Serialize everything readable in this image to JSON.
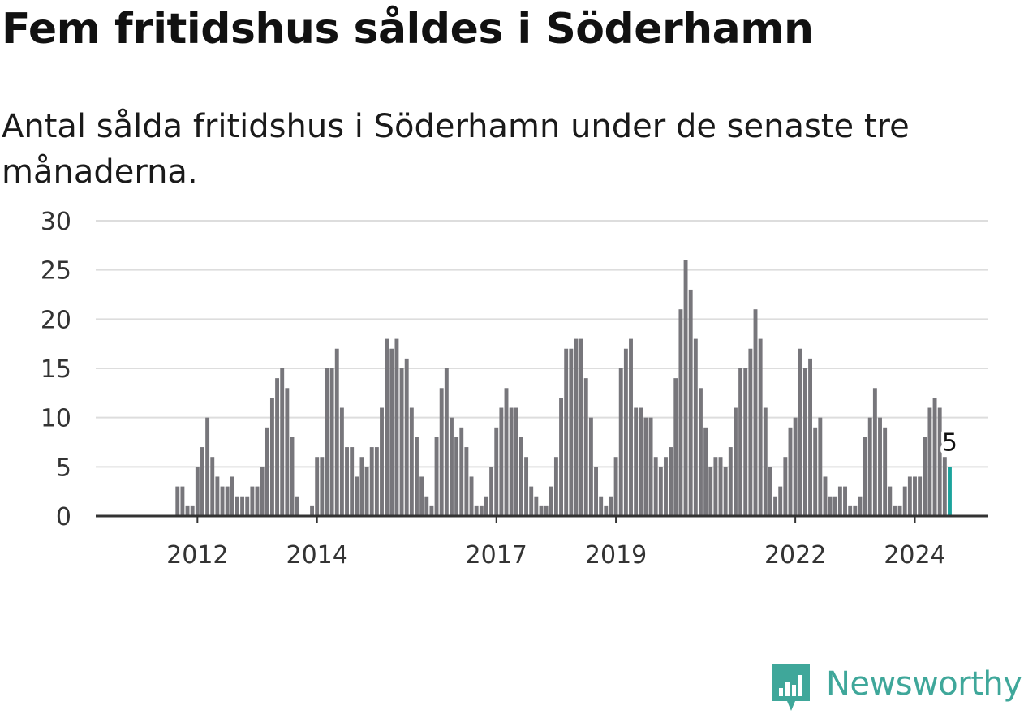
{
  "title": "Fem fritidshus såldes i Söderhamn",
  "subtitle": "Antal sålda fritidshus i Söderhamn under de senaste tre månaderna.",
  "logo": {
    "text": "Newsworthy",
    "icon": "newsworthy-chart-icon",
    "color": "#3fa79a"
  },
  "colors": {
    "bar": "#77767b",
    "highlight": "#1ba39c",
    "grid": "#dddddd",
    "axis": "#333333"
  },
  "chart_data": {
    "type": "bar",
    "ylim": [
      0,
      30
    ],
    "y_ticks": [
      0,
      5,
      10,
      15,
      20,
      25,
      30
    ],
    "x_ticks": [
      {
        "year": 2012,
        "label": "2012"
      },
      {
        "year": 2014,
        "label": "2014"
      },
      {
        "year": 2017,
        "label": "2017"
      },
      {
        "year": 2019,
        "label": "2019"
      },
      {
        "year": 2022,
        "label": "2022"
      },
      {
        "year": 2024,
        "label": "2024"
      }
    ],
    "x_start": "2011-01",
    "values": [
      0,
      0,
      0,
      0,
      0,
      0,
      0,
      0,
      3,
      3,
      1,
      1,
      5,
      7,
      10,
      6,
      4,
      3,
      3,
      4,
      2,
      2,
      2,
      3,
      3,
      5,
      9,
      12,
      14,
      15,
      13,
      8,
      2,
      0,
      0,
      1,
      6,
      6,
      15,
      15,
      17,
      11,
      7,
      7,
      4,
      6,
      5,
      7,
      7,
      11,
      18,
      17,
      18,
      15,
      16,
      11,
      8,
      4,
      2,
      1,
      8,
      13,
      15,
      10,
      8,
      9,
      7,
      4,
      1,
      1,
      2,
      5,
      9,
      11,
      13,
      11,
      11,
      8,
      6,
      3,
      2,
      1,
      1,
      3,
      6,
      12,
      17,
      17,
      18,
      18,
      14,
      10,
      5,
      2,
      1,
      2,
      6,
      15,
      17,
      18,
      11,
      11,
      10,
      10,
      6,
      5,
      6,
      7,
      14,
      21,
      26,
      23,
      18,
      13,
      9,
      5,
      6,
      6,
      5,
      7,
      11,
      15,
      15,
      17,
      21,
      18,
      11,
      5,
      2,
      3,
      6,
      9,
      10,
      17,
      15,
      16,
      9,
      10,
      4,
      2,
      2,
      3,
      3,
      1,
      1,
      2,
      8,
      10,
      13,
      10,
      9,
      3,
      1,
      1,
      3,
      4,
      4,
      4,
      8,
      11,
      12,
      11,
      6,
      5
    ],
    "highlight_last": true,
    "last_label": "5"
  }
}
